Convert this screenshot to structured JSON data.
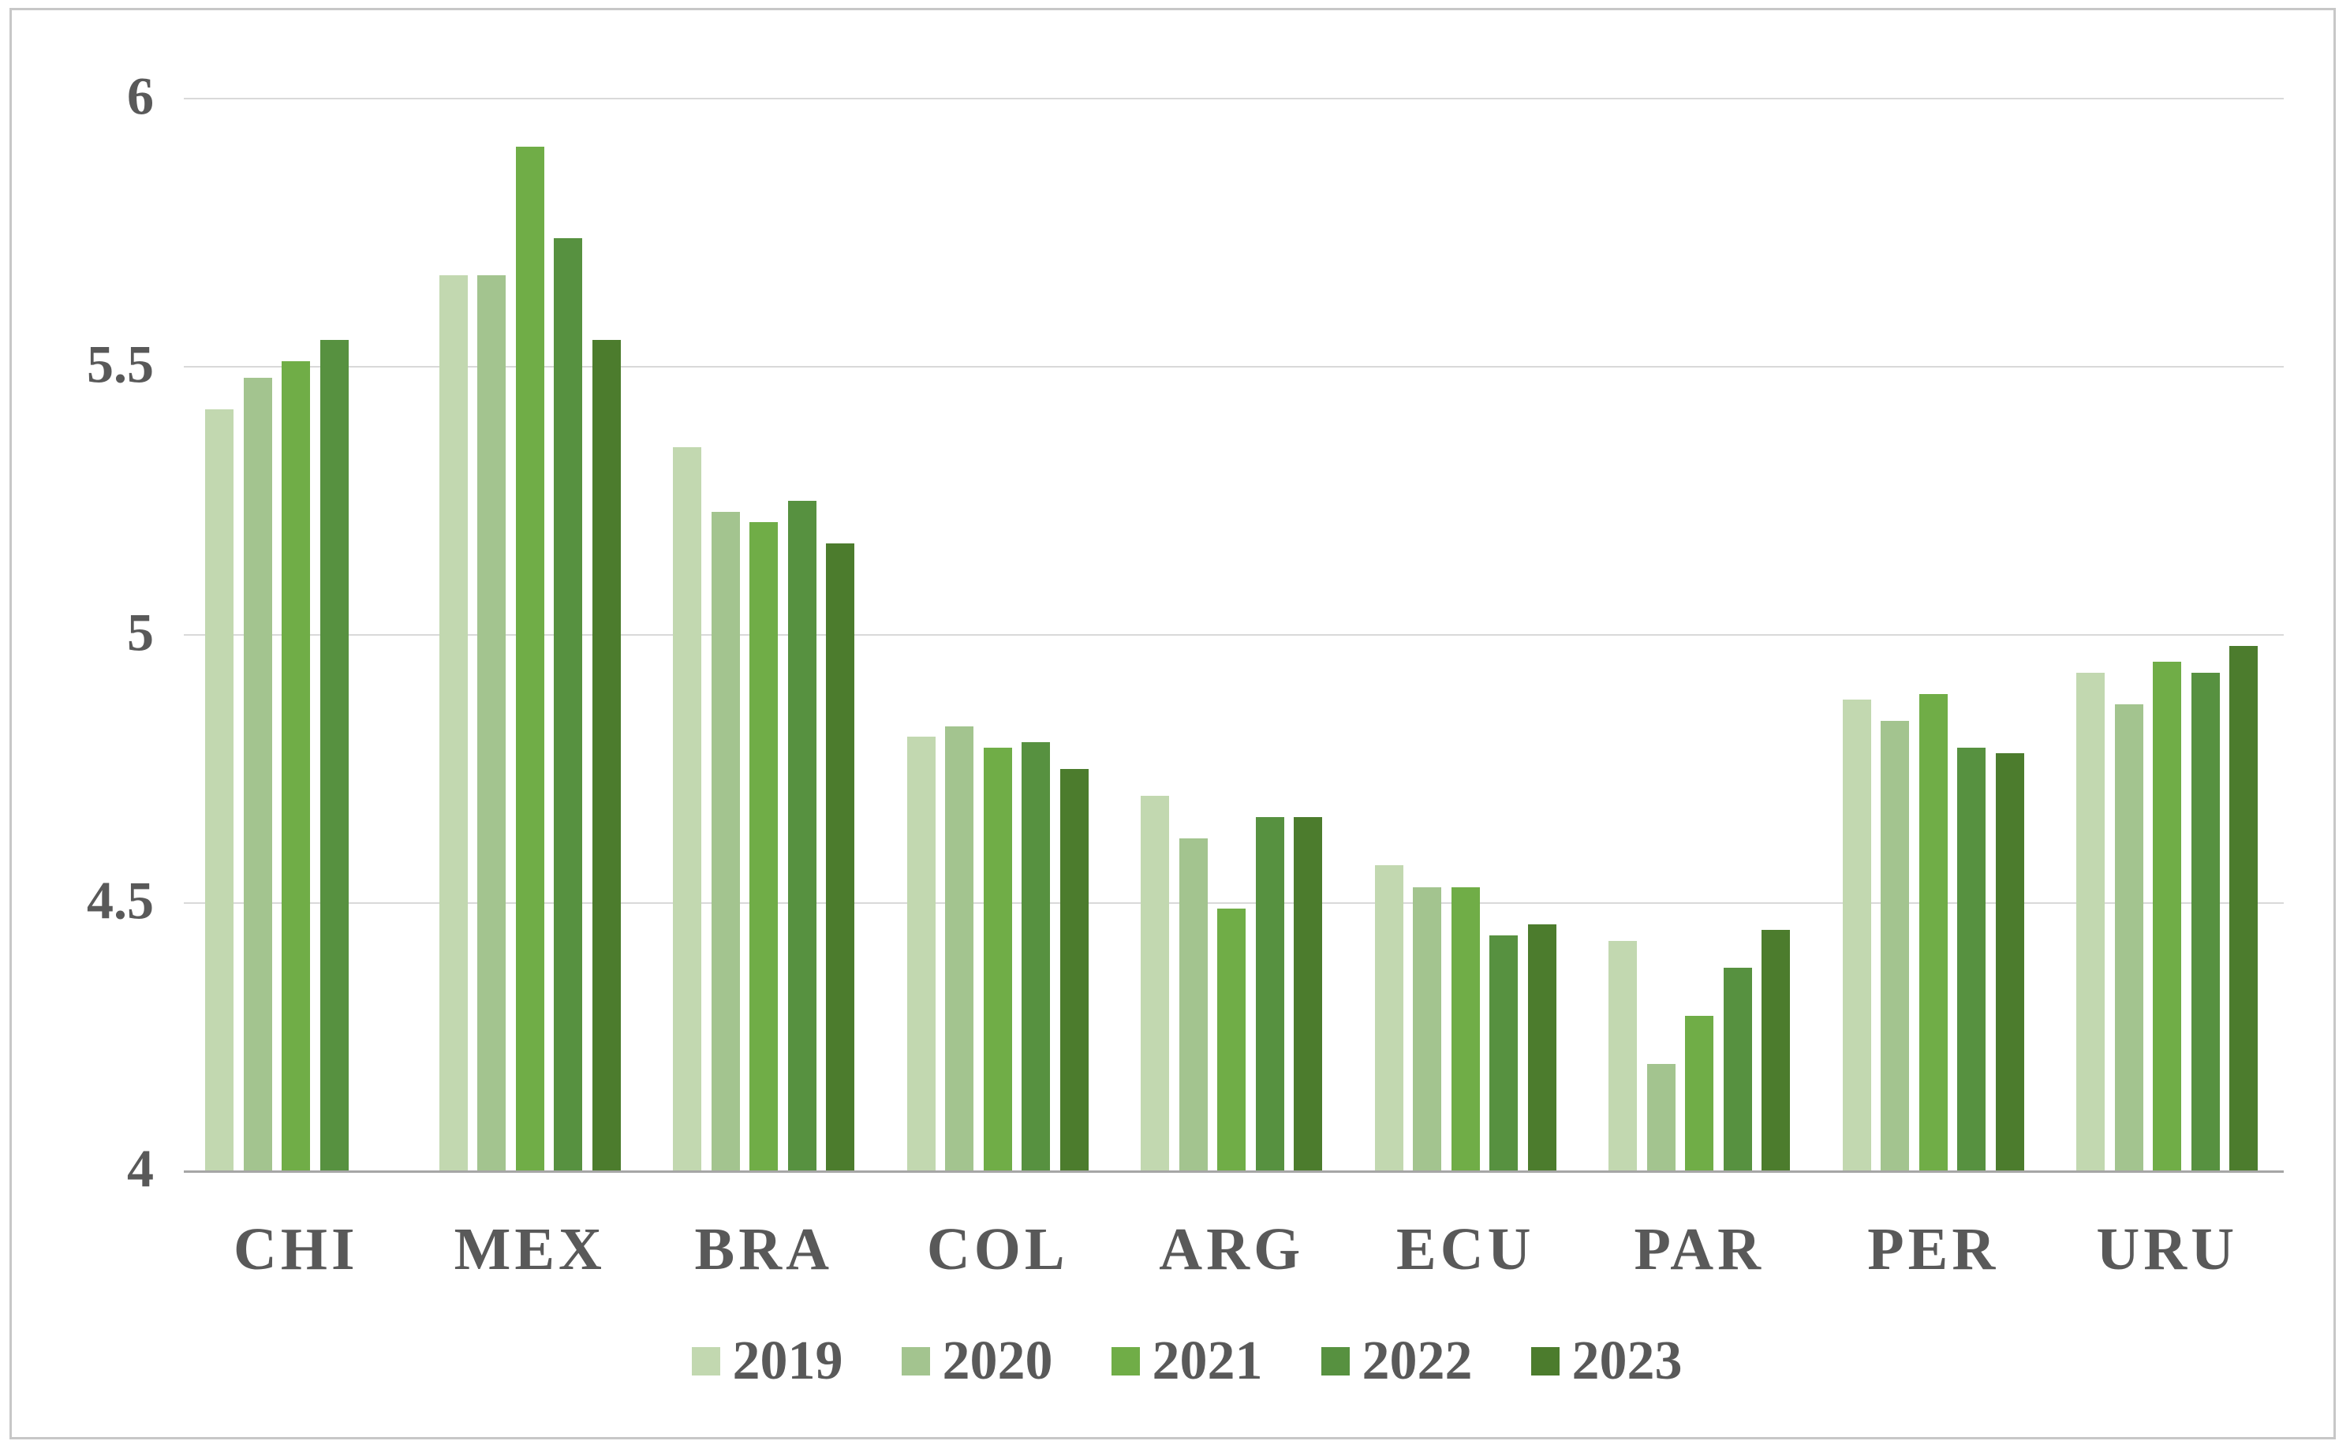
{
  "chart_data": {
    "type": "bar",
    "title": "",
    "xlabel": "",
    "ylabel": "",
    "categories": [
      "CHI",
      "MEX",
      "BRA",
      "COL",
      "ARG",
      "ECU",
      "PAR",
      "PER",
      "URU"
    ],
    "series": [
      {
        "name": "2019",
        "color": "#c2d8b0",
        "values": [
          5.42,
          5.67,
          5.35,
          4.81,
          4.7,
          4.57,
          4.43,
          4.88,
          4.93
        ]
      },
      {
        "name": "2020",
        "color": "#a3c48f",
        "values": [
          5.48,
          5.67,
          5.23,
          4.83,
          4.62,
          4.53,
          4.2,
          4.84,
          4.87
        ]
      },
      {
        "name": "2021",
        "color": "#70ad47",
        "values": [
          5.51,
          5.91,
          5.21,
          4.79,
          4.49,
          4.53,
          4.29,
          4.89,
          4.95
        ]
      },
      {
        "name": "2022",
        "color": "#579140",
        "values": [
          5.55,
          5.74,
          5.25,
          4.8,
          4.66,
          4.44,
          4.38,
          4.79,
          4.93
        ]
      },
      {
        "name": "2023",
        "color": "#4c7c2d",
        "values": [
          null,
          5.55,
          5.17,
          4.75,
          4.66,
          4.46,
          4.45,
          4.78,
          4.98
        ]
      }
    ],
    "ylim": [
      4,
      6
    ],
    "yticks": [
      4,
      4.5,
      5,
      5.5,
      6
    ],
    "ytick_labels": [
      "4",
      "4.5",
      "5",
      "5.5",
      "6"
    ],
    "grid": true,
    "legend_position": "bottom",
    "note_missing": "CHI has no 2023 bar"
  },
  "colors": {
    "background": "#ffffff",
    "frame_border": "#c7c7c7",
    "gridline": "#d9d9d9",
    "axis_line": "#a6a6a6",
    "text": "#595959"
  }
}
